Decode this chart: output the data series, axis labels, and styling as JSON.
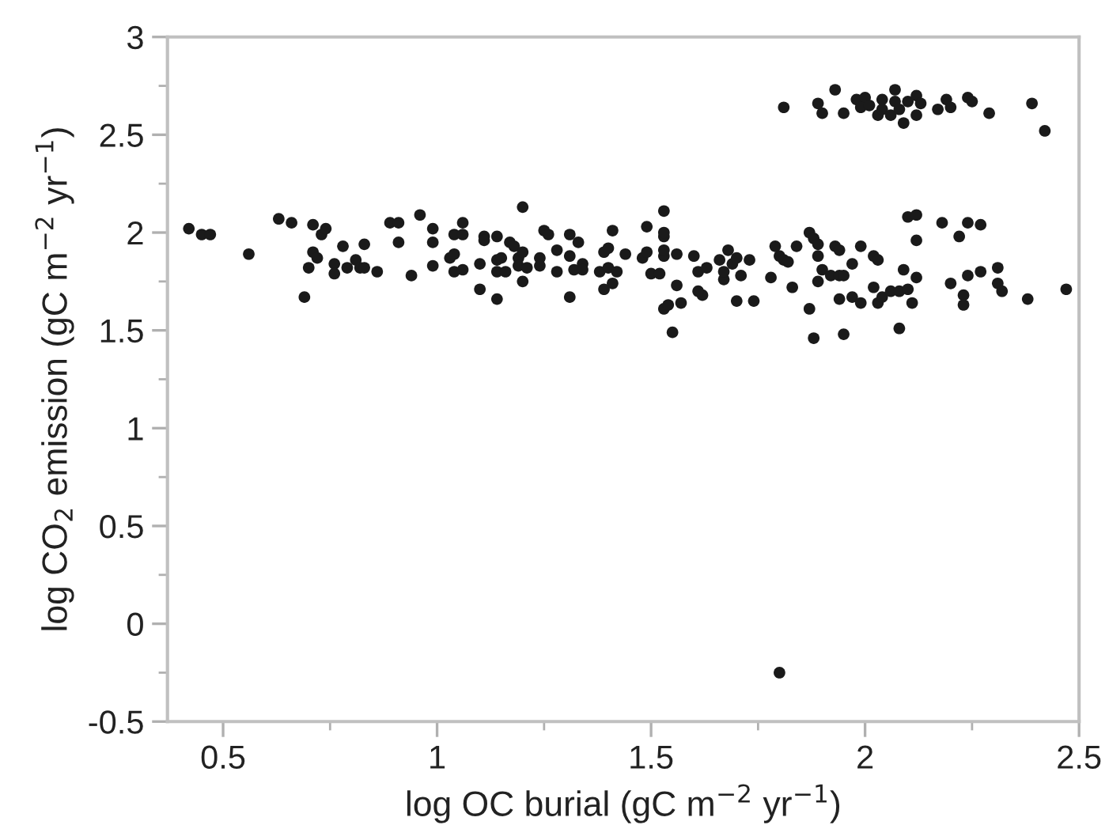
{
  "chart_data": {
    "type": "scatter",
    "xlabel": "log OC burial (gC m$^{−2}$ yr$^{−1}$)",
    "ylabel": "log CO$_{2}$ emission (gC m$^{−2}$ yr$^{−1}$)",
    "xlim": [
      0.37,
      2.5
    ],
    "ylim": [
      -0.5,
      3
    ],
    "xticks": [
      0.5,
      1,
      1.5,
      2,
      2.5
    ],
    "yticks": [
      -0.5,
      0,
      0.5,
      1,
      1.5,
      2,
      2.5,
      3
    ],
    "grid": false,
    "marker": "circle",
    "series": [
      {
        "color": "#1a1a1a",
        "x": [
          0.42,
          0.45,
          0.47,
          0.56,
          0.63,
          0.66,
          0.69,
          0.71,
          0.71,
          0.7,
          0.72,
          0.73,
          0.74,
          0.76,
          0.76,
          0.78,
          0.79,
          0.81,
          0.82,
          0.83,
          0.83,
          0.86,
          0.89,
          0.91,
          0.91,
          0.94,
          0.96,
          0.99,
          0.99,
          0.99,
          1.03,
          1.04,
          1.04,
          1.04,
          1.06,
          1.06,
          1.06,
          1.11,
          1.11,
          1.14,
          1.1,
          1.1,
          1.14,
          1.14,
          1.14,
          1.15,
          1.16,
          1.17,
          1.18,
          1.19,
          1.19,
          1.2,
          1.2,
          1.21,
          1.2,
          1.24,
          1.24,
          1.25,
          1.26,
          1.28,
          1.28,
          1.31,
          1.31,
          1.33,
          1.32,
          1.31,
          1.34,
          1.34,
          1.38,
          1.39,
          1.4,
          1.41,
          1.4,
          1.42,
          1.41,
          1.39,
          1.44,
          1.48,
          1.49,
          1.49,
          1.5,
          1.52,
          1.53,
          1.53,
          1.53,
          1.53,
          1.53,
          1.56,
          1.56,
          1.57,
          1.53,
          1.54,
          1.55,
          1.6,
          1.61,
          1.62,
          1.61,
          1.63,
          1.66,
          1.67,
          1.67,
          1.68,
          1.69,
          1.7,
          1.71,
          1.7,
          1.73,
          1.74,
          1.81,
          1.93,
          1.89,
          1.9,
          1.95,
          1.98,
          2.0,
          1.99,
          2.01,
          2.03,
          2.04,
          2.04,
          2.06,
          2.07,
          2.07,
          2.08,
          2.09,
          2.1,
          2.12,
          2.12,
          2.13,
          2.17,
          2.19,
          2.2,
          2.24,
          2.25,
          2.29,
          2.39,
          2.42,
          1.79,
          1.8,
          1.81,
          1.82,
          1.78,
          1.83,
          1.84,
          1.87,
          1.88,
          1.89,
          1.89,
          1.9,
          1.89,
          1.87,
          1.88,
          1.92,
          1.93,
          1.94,
          1.94,
          1.95,
          1.97,
          1.94,
          1.97,
          1.95,
          1.99,
          1.99,
          2.02,
          2.03,
          2.02,
          2.03,
          2.04,
          2.06,
          2.08,
          2.09,
          2.08,
          2.1,
          2.12,
          2.12,
          2.1,
          2.11,
          2.12,
          2.18,
          2.22,
          2.24,
          2.27,
          2.2,
          2.23,
          2.23,
          2.24,
          2.27,
          2.31,
          2.31,
          2.32,
          2.38,
          2.47,
          1.8
        ],
        "values": [
          2.02,
          1.99,
          1.99,
          1.89,
          2.07,
          2.05,
          1.67,
          2.04,
          1.9,
          1.82,
          1.87,
          1.99,
          2.02,
          1.84,
          1.79,
          1.93,
          1.82,
          1.86,
          1.82,
          1.94,
          1.82,
          1.8,
          2.05,
          2.05,
          1.95,
          1.78,
          2.09,
          2.02,
          1.95,
          1.83,
          1.87,
          1.99,
          1.89,
          1.8,
          2.05,
          1.81,
          1.99,
          1.98,
          1.96,
          1.98,
          1.84,
          1.71,
          1.66,
          1.86,
          1.8,
          1.87,
          1.8,
          1.95,
          1.93,
          1.87,
          1.83,
          2.13,
          1.9,
          1.82,
          1.75,
          1.87,
          1.83,
          2.01,
          1.99,
          1.8,
          1.91,
          1.99,
          1.88,
          1.95,
          1.81,
          1.67,
          1.84,
          1.81,
          1.8,
          1.9,
          1.92,
          2.01,
          1.82,
          1.8,
          1.74,
          1.71,
          1.89,
          1.87,
          2.03,
          1.9,
          1.79,
          1.79,
          1.98,
          2.0,
          1.88,
          2.11,
          1.91,
          1.89,
          1.73,
          1.64,
          1.61,
          1.63,
          1.49,
          1.88,
          1.8,
          1.68,
          1.7,
          1.82,
          1.86,
          1.76,
          1.8,
          1.91,
          1.84,
          1.87,
          1.78,
          1.65,
          1.86,
          1.65,
          2.64,
          2.73,
          2.66,
          2.61,
          2.61,
          2.68,
          2.69,
          2.64,
          2.65,
          2.6,
          2.68,
          2.63,
          2.6,
          2.73,
          2.67,
          2.63,
          2.56,
          2.67,
          2.7,
          2.6,
          2.66,
          2.63,
          2.68,
          2.64,
          2.69,
          2.67,
          2.61,
          2.66,
          2.52,
          1.93,
          1.88,
          1.86,
          1.85,
          1.77,
          1.72,
          1.93,
          2.0,
          1.97,
          1.94,
          1.88,
          1.81,
          1.75,
          1.61,
          1.46,
          1.78,
          1.93,
          1.91,
          1.78,
          1.78,
          1.84,
          1.66,
          1.67,
          1.48,
          1.64,
          1.93,
          1.88,
          1.86,
          1.72,
          1.64,
          1.67,
          1.7,
          1.7,
          1.81,
          1.51,
          2.08,
          2.09,
          1.96,
          1.71,
          1.64,
          1.77,
          2.05,
          1.98,
          2.05,
          2.04,
          1.74,
          1.68,
          1.63,
          1.78,
          1.8,
          1.82,
          1.74,
          1.7,
          1.66,
          1.71,
          -0.25
        ]
      }
    ]
  }
}
